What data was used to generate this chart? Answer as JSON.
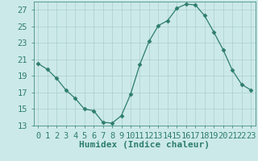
{
  "x": [
    0,
    1,
    2,
    3,
    4,
    5,
    6,
    7,
    8,
    9,
    10,
    11,
    12,
    13,
    14,
    15,
    16,
    17,
    18,
    19,
    20,
    21,
    22,
    23
  ],
  "y": [
    20.5,
    19.8,
    18.7,
    17.3,
    16.3,
    15.0,
    14.8,
    13.4,
    13.3,
    14.2,
    16.8,
    20.4,
    23.2,
    25.1,
    25.7,
    27.2,
    27.7,
    27.6,
    26.3,
    24.3,
    22.2,
    19.7,
    18.0,
    17.3
  ],
  "line_color": "#2d7d6e",
  "marker": "D",
  "marker_size": 2.5,
  "bg_color": "#cce9e9",
  "grid_color": "#aacfcf",
  "tick_color": "#2d7d6e",
  "xlabel": "Humidex (Indice chaleur)",
  "xlabel_fontsize": 8,
  "xlabel_color": "#2d7d6e",
  "ylim": [
    13,
    28
  ],
  "xlim": [
    -0.5,
    23.5
  ],
  "yticks": [
    13,
    15,
    17,
    19,
    21,
    23,
    25,
    27
  ],
  "tick_fontsize": 7.5
}
